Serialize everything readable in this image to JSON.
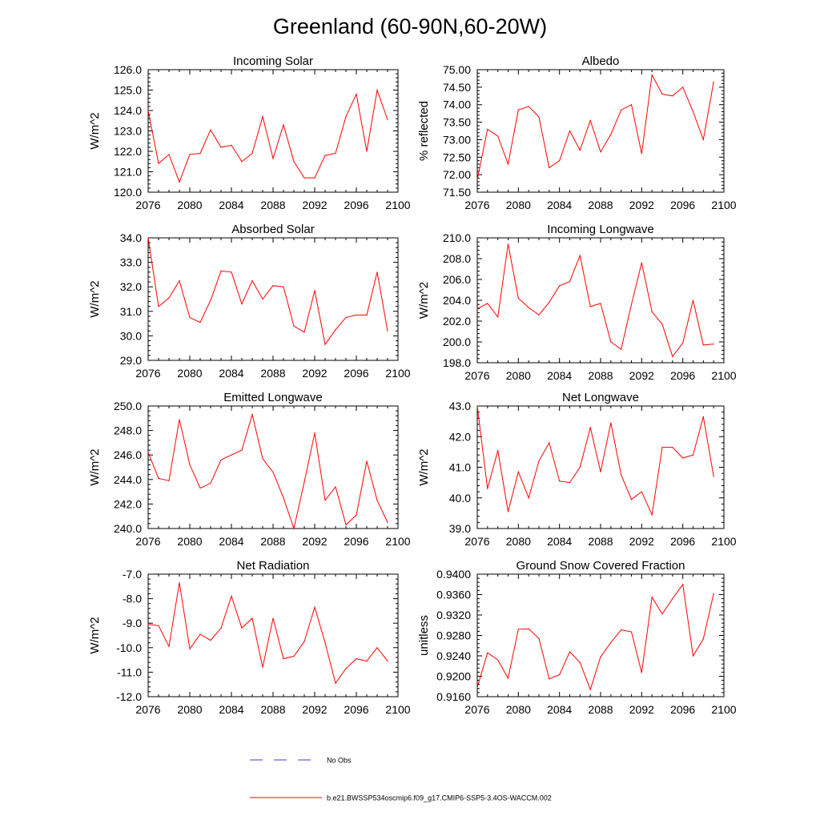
{
  "figure": {
    "title": "Greenland (60-90N,60-20W)",
    "legend": [
      {
        "label": "No Obs",
        "color": "#3b3bd1",
        "style": "dashed"
      },
      {
        "label": "b.e21.BWSSP534oscmip6.f09_g17.CMIP6-SSP5-3.4OS-WACCM.002",
        "color": "#ff0000",
        "style": "solid"
      }
    ]
  },
  "chart_data": [
    {
      "type": "line",
      "title": "Incoming Solar",
      "ylabel": "W/m^2",
      "xlim": [
        2076,
        2100
      ],
      "xticks": [
        "2076",
        "2080",
        "2084",
        "2088",
        "2092",
        "2096",
        "2100"
      ],
      "ylim": [
        120.0,
        126.0
      ],
      "yticks": [
        "120.0",
        "121.0",
        "122.0",
        "123.0",
        "124.0",
        "125.0",
        "126.0"
      ],
      "x": [
        2076,
        2077,
        2078,
        2079,
        2080,
        2081,
        2082,
        2083,
        2084,
        2085,
        2086,
        2087,
        2088,
        2089,
        2090,
        2091,
        2092,
        2093,
        2094,
        2095,
        2096,
        2097,
        2098,
        2099
      ],
      "values": [
        124.0,
        121.4,
        121.85,
        120.5,
        121.85,
        121.9,
        123.05,
        122.2,
        122.3,
        121.5,
        121.9,
        123.7,
        121.65,
        123.3,
        121.5,
        120.7,
        120.7,
        121.8,
        121.9,
        123.7,
        124.8,
        122.0,
        125.0,
        123.55
      ]
    },
    {
      "type": "line",
      "title": "Albedo",
      "ylabel": "% reflected",
      "xlim": [
        2076,
        2100
      ],
      "xticks": [
        "2076",
        "2080",
        "2084",
        "2088",
        "2092",
        "2096",
        "2100"
      ],
      "ylim": [
        71.5,
        75.0
      ],
      "yticks": [
        "71.50",
        "72.00",
        "72.50",
        "73.00",
        "73.50",
        "74.00",
        "74.50",
        "75.00"
      ],
      "x": [
        2076,
        2077,
        2078,
        2079,
        2080,
        2081,
        2082,
        2083,
        2084,
        2085,
        2086,
        2087,
        2088,
        2089,
        2090,
        2091,
        2092,
        2093,
        2094,
        2095,
        2096,
        2097,
        2098,
        2099
      ],
      "values": [
        71.85,
        73.3,
        73.1,
        72.3,
        73.85,
        73.95,
        73.65,
        72.2,
        72.4,
        73.25,
        72.7,
        73.55,
        72.65,
        73.15,
        73.85,
        74.0,
        72.6,
        74.85,
        74.3,
        74.25,
        74.5,
        73.8,
        73.0,
        74.65
      ]
    },
    {
      "type": "line",
      "title": "Absorbed Solar",
      "ylabel": "W/m^2",
      "xlim": [
        2076,
        2100
      ],
      "xticks": [
        "2076",
        "2080",
        "2084",
        "2088",
        "2092",
        "2096",
        "2100"
      ],
      "ylim": [
        29.0,
        34.0
      ],
      "yticks": [
        "29.0",
        "30.0",
        "31.0",
        "32.0",
        "33.0",
        "34.0"
      ],
      "x": [
        2076,
        2077,
        2078,
        2079,
        2080,
        2081,
        2082,
        2083,
        2084,
        2085,
        2086,
        2087,
        2088,
        2089,
        2090,
        2091,
        2092,
        2093,
        2094,
        2095,
        2096,
        2097,
        2098,
        2099
      ],
      "values": [
        34.0,
        31.2,
        31.55,
        32.25,
        30.75,
        30.55,
        31.45,
        32.65,
        32.6,
        31.3,
        32.25,
        31.5,
        32.05,
        32.0,
        30.4,
        30.15,
        31.85,
        29.65,
        30.25,
        30.75,
        30.85,
        30.85,
        32.6,
        30.2
      ]
    },
    {
      "type": "line",
      "title": "Incoming Longwave",
      "ylabel": "W/m^2",
      "xlim": [
        2076,
        2100
      ],
      "xticks": [
        "2076",
        "2080",
        "2084",
        "2088",
        "2092",
        "2096",
        "2100"
      ],
      "ylim": [
        198.0,
        210.0
      ],
      "yticks": [
        "198.0",
        "200.0",
        "202.0",
        "204.0",
        "206.0",
        "208.0",
        "210.0"
      ],
      "x": [
        2076,
        2077,
        2078,
        2079,
        2080,
        2081,
        2082,
        2083,
        2084,
        2085,
        2086,
        2087,
        2088,
        2089,
        2090,
        2091,
        2092,
        2093,
        2094,
        2095,
        2096,
        2097,
        2098,
        2099
      ],
      "values": [
        203.2,
        203.7,
        202.4,
        209.4,
        204.2,
        203.3,
        202.6,
        203.8,
        205.4,
        205.8,
        208.3,
        203.4,
        203.7,
        200.0,
        199.3,
        203.6,
        207.6,
        202.9,
        201.7,
        198.6,
        199.9,
        204.0,
        199.7,
        199.8
      ]
    },
    {
      "type": "line",
      "title": "Emitted Longwave",
      "ylabel": "W/m^2",
      "xlim": [
        2076,
        2100
      ],
      "xticks": [
        "2076",
        "2080",
        "2084",
        "2088",
        "2092",
        "2096",
        "2100"
      ],
      "ylim": [
        240.0,
        250.0
      ],
      "yticks": [
        "240.0",
        "242.0",
        "244.0",
        "246.0",
        "248.0",
        "250.0"
      ],
      "x": [
        2076,
        2077,
        2078,
        2079,
        2080,
        2081,
        2082,
        2083,
        2084,
        2085,
        2086,
        2087,
        2088,
        2089,
        2090,
        2091,
        2092,
        2093,
        2094,
        2095,
        2096,
        2097,
        2098,
        2099
      ],
      "values": [
        246.2,
        244.1,
        243.9,
        248.9,
        245.2,
        243.3,
        243.7,
        245.6,
        246.0,
        246.4,
        249.3,
        245.7,
        244.6,
        242.5,
        240.0,
        243.8,
        247.8,
        242.3,
        243.4,
        240.3,
        241.1,
        245.5,
        242.3,
        240.5
      ]
    },
    {
      "type": "line",
      "title": "Net Longwave",
      "ylabel": "W/m^2",
      "xlim": [
        2076,
        2100
      ],
      "xticks": [
        "2076",
        "2080",
        "2084",
        "2088",
        "2092",
        "2096",
        "2100"
      ],
      "ylim": [
        39.0,
        43.0
      ],
      "yticks": [
        "39.0",
        "40.0",
        "41.0",
        "42.0",
        "43.0"
      ],
      "x": [
        2076,
        2077,
        2078,
        2079,
        2080,
        2081,
        2082,
        2083,
        2084,
        2085,
        2086,
        2087,
        2088,
        2089,
        2090,
        2091,
        2092,
        2093,
        2094,
        2095,
        2096,
        2097,
        2098,
        2099
      ],
      "values": [
        43.0,
        40.3,
        41.55,
        39.55,
        40.85,
        40.0,
        41.2,
        41.8,
        40.55,
        40.5,
        41.0,
        42.3,
        40.85,
        42.45,
        40.75,
        39.95,
        40.2,
        39.45,
        41.65,
        41.65,
        41.3,
        41.4,
        42.65,
        40.7
      ]
    },
    {
      "type": "line",
      "title": "Net Radiation",
      "ylabel": "W/m^2",
      "xlim": [
        2076,
        2100
      ],
      "xticks": [
        "2076",
        "2080",
        "2084",
        "2088",
        "2092",
        "2096",
        "2100"
      ],
      "ylim": [
        -12.0,
        -7.0
      ],
      "yticks": [
        "-12.0",
        "-11.0",
        "-10.0",
        "-9.0",
        "-8.0",
        "-7.0"
      ],
      "x": [
        2076,
        2077,
        2078,
        2079,
        2080,
        2081,
        2082,
        2083,
        2084,
        2085,
        2086,
        2087,
        2088,
        2089,
        2090,
        2091,
        2092,
        2093,
        2094,
        2095,
        2096,
        2097,
        2098,
        2099
      ],
      "values": [
        -9.05,
        -9.1,
        -9.95,
        -7.35,
        -10.05,
        -9.45,
        -9.7,
        -9.2,
        -7.9,
        -9.2,
        -8.8,
        -10.8,
        -8.8,
        -10.45,
        -10.35,
        -9.75,
        -8.35,
        -9.8,
        -11.45,
        -10.85,
        -10.45,
        -10.55,
        -10.0,
        -10.55
      ]
    },
    {
      "type": "line",
      "title": "Ground Snow Covered Fraction",
      "ylabel": "unitless",
      "xlim": [
        2076,
        2100
      ],
      "xticks": [
        "2076",
        "2080",
        "2084",
        "2088",
        "2092",
        "2096",
        "2100"
      ],
      "ylim": [
        0.916,
        0.94
      ],
      "yticks": [
        "0.9160",
        "0.9200",
        "0.9240",
        "0.9280",
        "0.9320",
        "0.9360",
        "0.9400"
      ],
      "x": [
        2076,
        2077,
        2078,
        2079,
        2080,
        2081,
        2082,
        2083,
        2084,
        2085,
        2086,
        2087,
        2088,
        2089,
        2090,
        2091,
        2092,
        2093,
        2094,
        2095,
        2096,
        2097,
        2098,
        2099
      ],
      "values": [
        0.9178,
        0.9246,
        0.9232,
        0.9196,
        0.9292,
        0.9293,
        0.9274,
        0.9195,
        0.9203,
        0.9248,
        0.9227,
        0.9174,
        0.9238,
        0.9266,
        0.9291,
        0.9287,
        0.9207,
        0.9355,
        0.9322,
        0.9352,
        0.938,
        0.924,
        0.9273,
        0.9362
      ]
    }
  ]
}
